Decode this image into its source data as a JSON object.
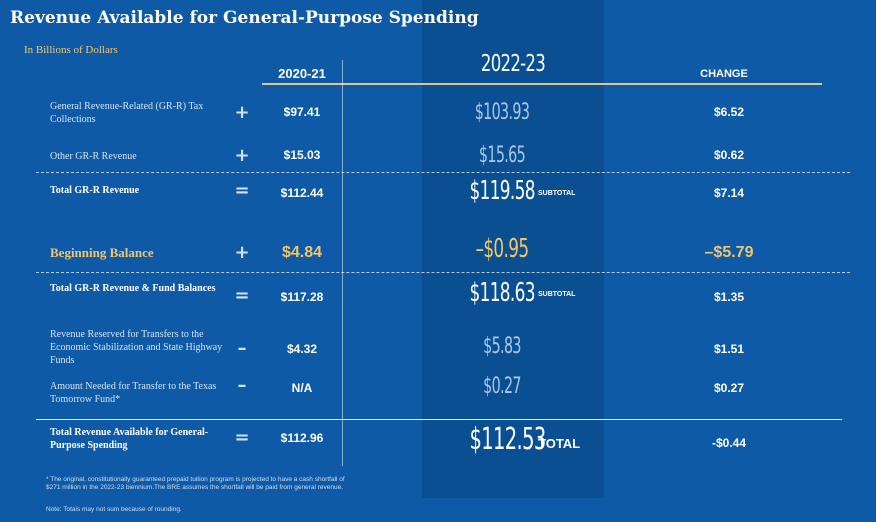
{
  "title": "Revenue Available for General-Purpose Spending",
  "subtitle": "In Billions of Dollars",
  "columns": {
    "c2021": "2020-21",
    "c2223": "2022-23",
    "change": "CHANGE"
  },
  "rows": [
    {
      "label": "General Revenue-Related (GR-R) Tax Collections",
      "op": "+",
      "v2021": "$97.41",
      "v2223": "$103.93",
      "tag": "",
      "change": "$6.52"
    },
    {
      "label": "Other GR-R Revenue",
      "op": "+",
      "v2021": "$15.03",
      "v2223": "$15.65",
      "tag": "",
      "change": "$0.62"
    },
    {
      "label": "Total GR-R Revenue",
      "op": "=",
      "v2021": "$112.44",
      "v2223": "$119.58",
      "tag": "SUBTOTAL",
      "change": "$7.14"
    },
    {
      "label": "Beginning Balance",
      "op": "+",
      "v2021": "$4.84",
      "v2223": "–$0.95",
      "tag": "",
      "change": "–$5.79"
    },
    {
      "label": "Total GR-R Revenue & Fund Balances",
      "op": "=",
      "v2021": "$117.28",
      "v2223": "$118.63",
      "tag": "SUBTOTAL",
      "change": "$1.35"
    },
    {
      "label": "Revenue Reserved for Transfers to the Economic Stabilization and State Highway Funds",
      "op": "–",
      "v2021": "$4.32",
      "v2223": "$5.83",
      "tag": "",
      "change": "$1.51"
    },
    {
      "label": "Amount Needed for Transfer to the Texas Tomorrow Fund*",
      "op": "–",
      "v2021": "N/A",
      "v2223": "$0.27",
      "tag": "",
      "change": "$0.27"
    },
    {
      "label": "Total Revenue Available for General-Purpose Spending",
      "op": "=",
      "v2021": "$112.96",
      "v2223": "$112.53",
      "tag": "TOTAL",
      "change": "-$0.44"
    }
  ],
  "footnote": "* The original, constitutionally guaranteed prepaid tuition program is projected to have a cash shortfall of $271 million in the 2022-23 biennium.The BRE assumes the shortfall will be paid from general revenue.",
  "note": "Note: Totals may not sum because of rounding.",
  "colors": {
    "background": "#0f5aa6",
    "highlight": "#0a4f91",
    "gold": "#f1c56a"
  }
}
